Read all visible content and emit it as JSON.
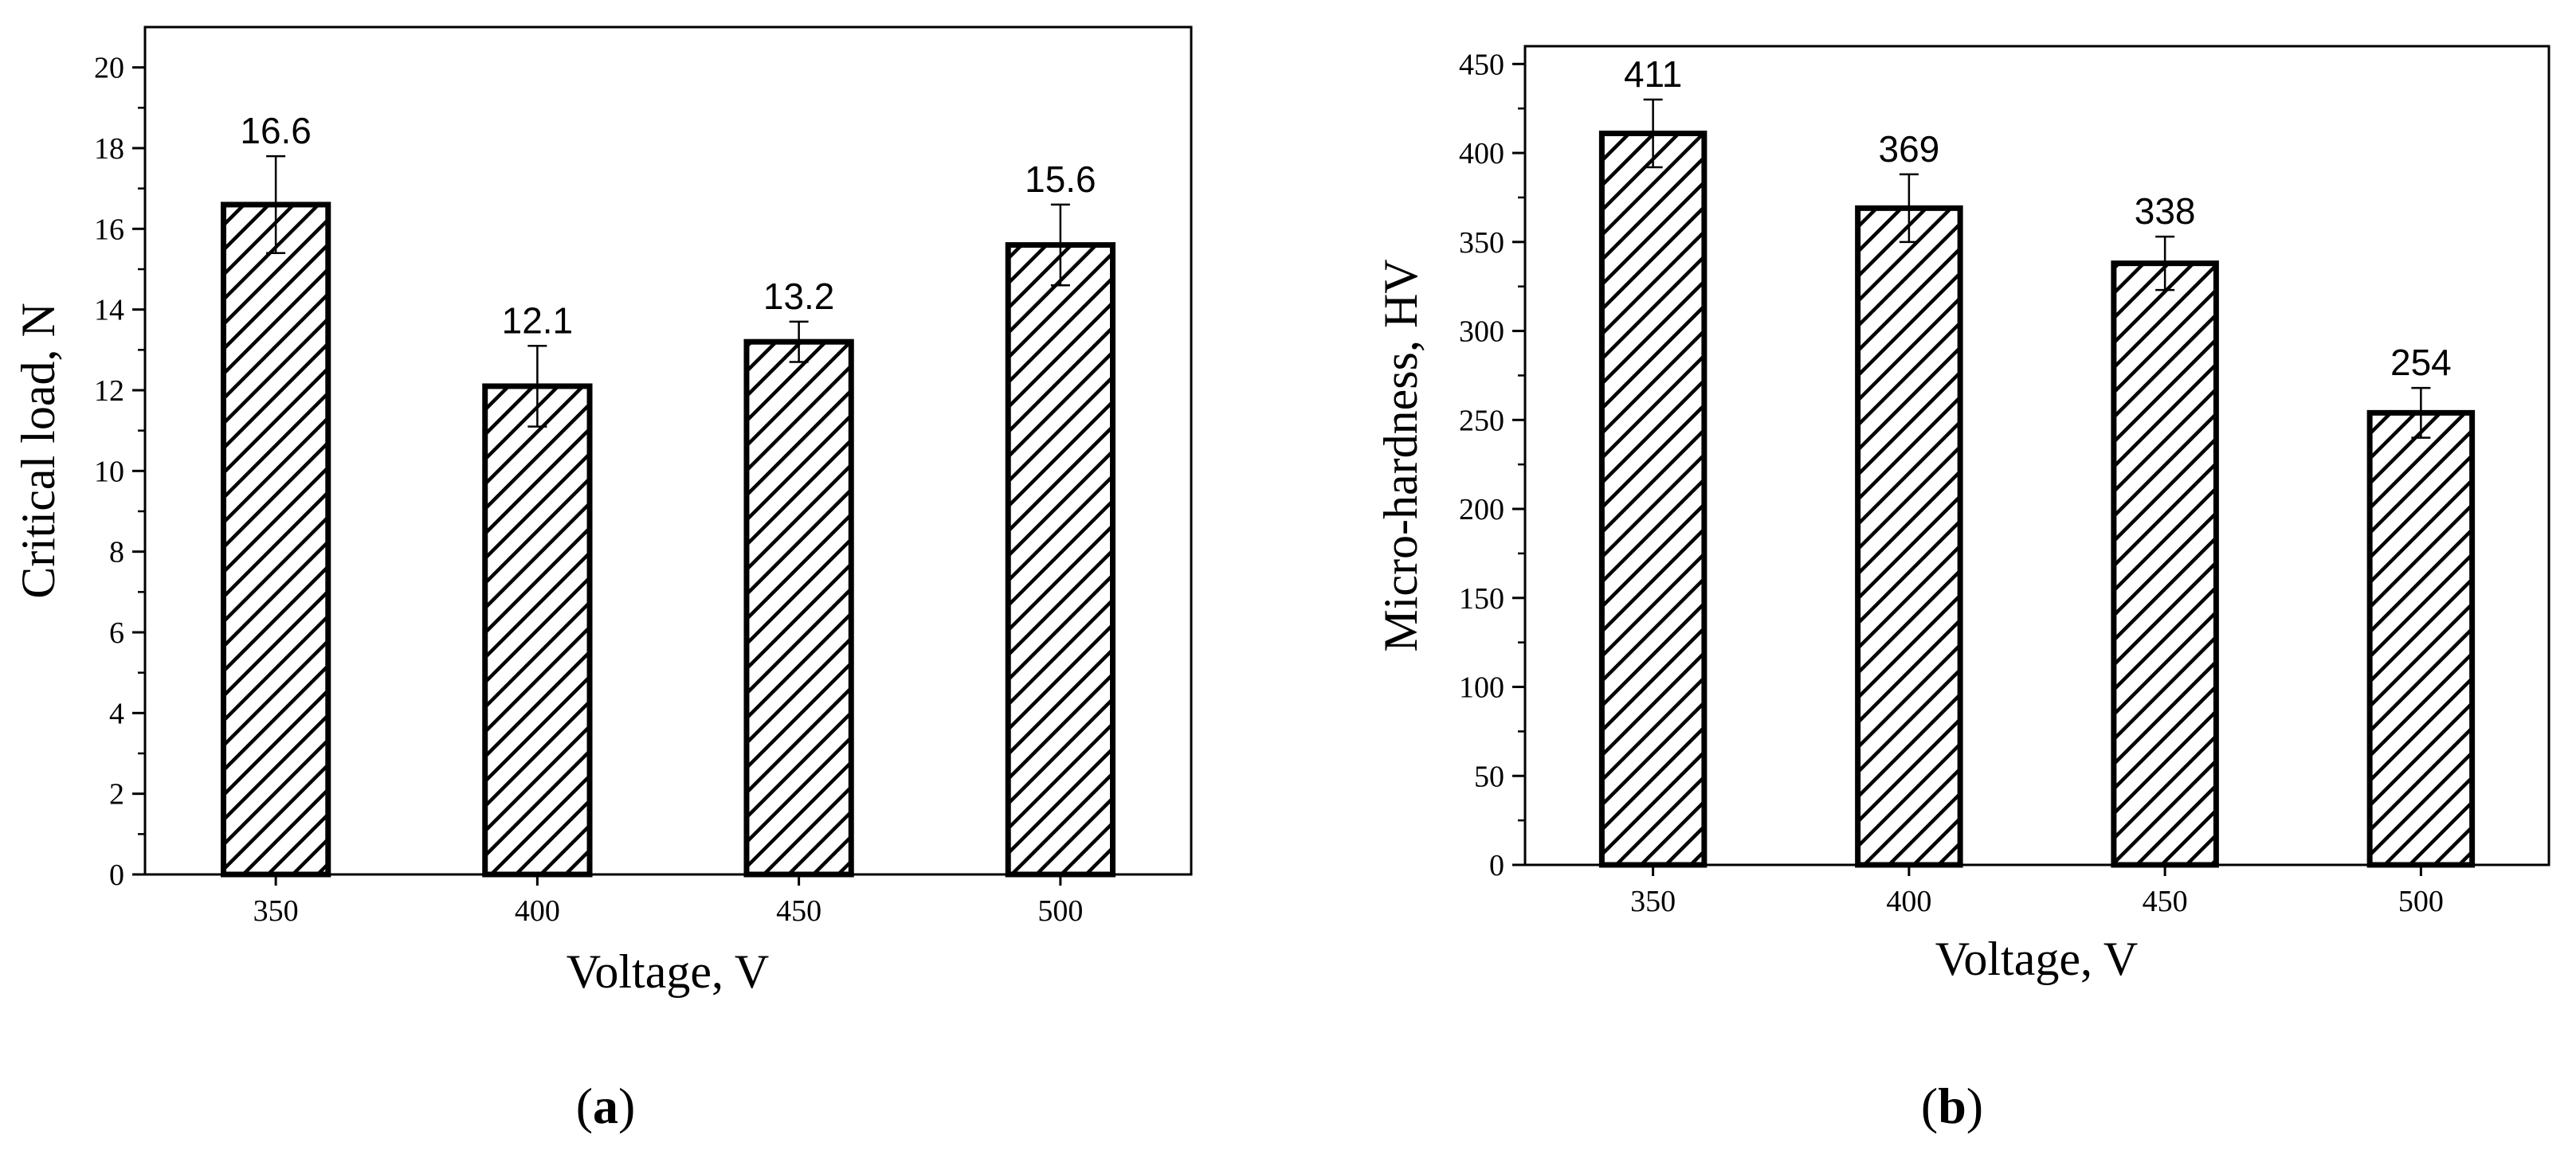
{
  "chart_data": [
    {
      "type": "bar",
      "panel_label": "a",
      "categories": [
        "350",
        "400",
        "450",
        "500"
      ],
      "values": [
        16.6,
        12.1,
        13.2,
        15.6
      ],
      "errors": [
        1.2,
        1.0,
        0.5,
        1.0
      ],
      "data_labels": [
        "16.6",
        "12.1",
        "13.2",
        "15.6"
      ],
      "xlabel": "Voltage, V",
      "ylabel": "Critical load, N",
      "ylim": [
        0,
        21
      ],
      "yticks": [
        0,
        2,
        4,
        6,
        8,
        10,
        12,
        14,
        16,
        18,
        20
      ],
      "bar_pattern": "diagonal-hatch",
      "grid": false
    },
    {
      "type": "bar",
      "panel_label": "b",
      "categories": [
        "350",
        "400",
        "450",
        "500"
      ],
      "values": [
        411,
        369,
        338,
        254
      ],
      "errors": [
        19,
        19,
        15,
        14
      ],
      "data_labels": [
        "411",
        "369",
        "338",
        "254"
      ],
      "xlabel": "Voltage, V",
      "ylabel": "Micro-hardness, HV",
      "ylim": [
        0,
        460
      ],
      "yticks": [
        0,
        50,
        100,
        150,
        200,
        250,
        300,
        350,
        400,
        450
      ],
      "bar_pattern": "diagonal-hatch",
      "grid": false
    }
  ]
}
